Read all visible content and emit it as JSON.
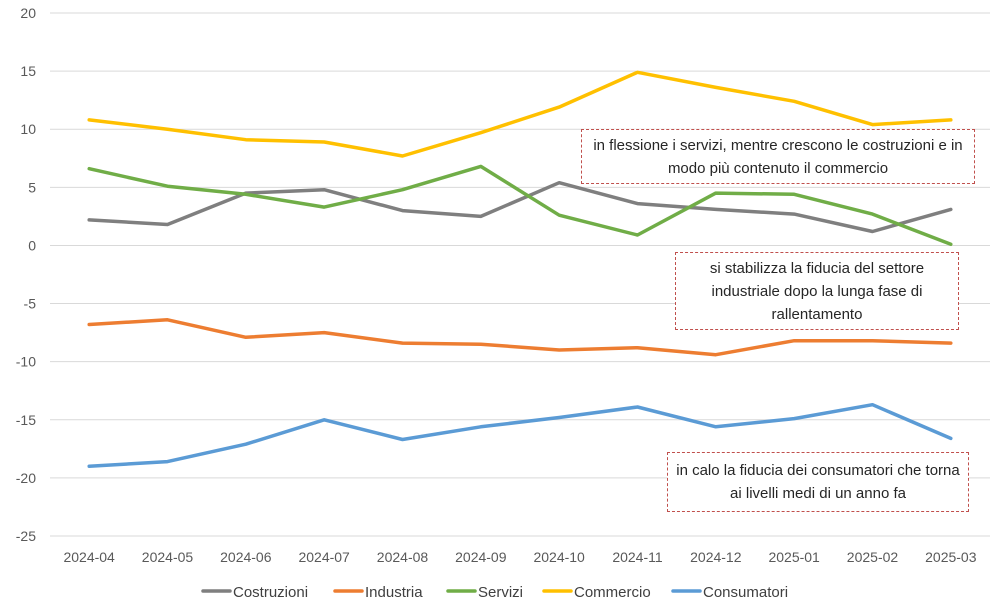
{
  "chart_data": {
    "type": "line",
    "categories": [
      "2024-04",
      "2024-05",
      "2024-06",
      "2024-07",
      "2024-08",
      "2024-09",
      "2024-10",
      "2024-11",
      "2024-12",
      "2025-01",
      "2025-02",
      "2025-03"
    ],
    "ylim": [
      -25,
      20
    ],
    "yticks": [
      20,
      15,
      10,
      5,
      0,
      -5,
      -10,
      -15,
      -20,
      -25
    ],
    "grid": true,
    "legend_position": "bottom",
    "series": [
      {
        "name": "Costruzioni",
        "color": "#7f7f7f",
        "values": [
          2.2,
          1.8,
          4.5,
          4.8,
          3.0,
          2.5,
          5.4,
          3.6,
          3.1,
          2.7,
          1.2,
          3.1
        ]
      },
      {
        "name": "Industria",
        "color": "#ed7d31",
        "values": [
          -6.8,
          -6.4,
          -7.9,
          -7.5,
          -8.4,
          -8.5,
          -9.0,
          -8.8,
          -9.4,
          -8.2,
          -8.2,
          -8.4
        ]
      },
      {
        "name": "Servizi",
        "color": "#70ad47",
        "values": [
          6.6,
          5.1,
          4.4,
          3.3,
          4.8,
          6.8,
          2.6,
          0.9,
          4.5,
          4.4,
          2.7,
          0.1
        ]
      },
      {
        "name": "Commercio",
        "color": "#ffc000",
        "values": [
          10.8,
          10.0,
          9.1,
          8.9,
          7.7,
          9.7,
          11.9,
          14.9,
          13.6,
          12.4,
          10.4,
          10.8
        ]
      },
      {
        "name": "Consumatori",
        "color": "#5b9bd5",
        "values": [
          -19.0,
          -18.6,
          -17.1,
          -15.0,
          -16.7,
          -15.6,
          -14.8,
          -13.9,
          -15.6,
          -14.9,
          -13.7,
          -16.6
        ]
      }
    ],
    "annotations": [
      "in flessione i servizi, mentre crescono le costruzioni e in modo più contenuto il commercio",
      "si stabilizza la fiducia del settore industriale dopo la lunga fase di rallentamento",
      "in  calo la fiducia dei consumatori che torna ai livelli medi di un anno fa"
    ]
  }
}
